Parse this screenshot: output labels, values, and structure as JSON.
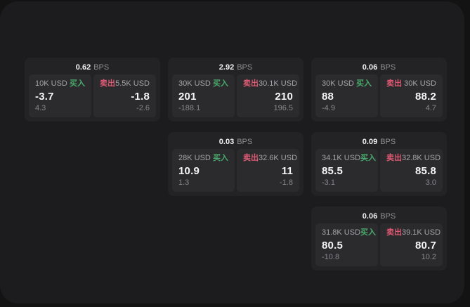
{
  "colors": {
    "page": "#131314",
    "panel": "#1c1c1e",
    "card": "#232326",
    "pane": "#2b2b2e",
    "buy": "#4aa96c",
    "sell": "#dd5a72"
  },
  "labels": {
    "bps_suffix": "BPS",
    "buy": "买入",
    "sell": "卖出"
  },
  "cards": [
    {
      "bps": "0.62",
      "buy": {
        "amount": "10K USD",
        "price": "-3.7",
        "delta": "4.3"
      },
      "sell": {
        "amount": "5.5K USD",
        "price": "-1.8",
        "delta": "-2.6"
      }
    },
    {
      "bps": "2.92",
      "buy": {
        "amount": "30K USD",
        "price": "201",
        "delta": "-188.1"
      },
      "sell": {
        "amount": "30.1K USD",
        "price": "210",
        "delta": "196.5"
      }
    },
    {
      "bps": "0.06",
      "buy": {
        "amount": "30K USD",
        "price": "88",
        "delta": "-4.9"
      },
      "sell": {
        "amount": "30K USD",
        "price": "88.2",
        "delta": "4.7"
      }
    },
    {
      "bps": "0.03",
      "buy": {
        "amount": "28K USD",
        "price": "10.9",
        "delta": "1.3"
      },
      "sell": {
        "amount": "32.6K USD",
        "price": "11",
        "delta": "-1.8"
      }
    },
    {
      "bps": "0.09",
      "buy": {
        "amount": "34.1K USD",
        "price": "85.5",
        "delta": "-3.1"
      },
      "sell": {
        "amount": "32.8K USD",
        "price": "85.8",
        "delta": "3.0"
      }
    },
    {
      "bps": "0.06",
      "buy": {
        "amount": "31.8K USD",
        "price": "80.5",
        "delta": "-10.8"
      },
      "sell": {
        "amount": "39.1K USD",
        "price": "80.7",
        "delta": "10.2"
      }
    }
  ]
}
